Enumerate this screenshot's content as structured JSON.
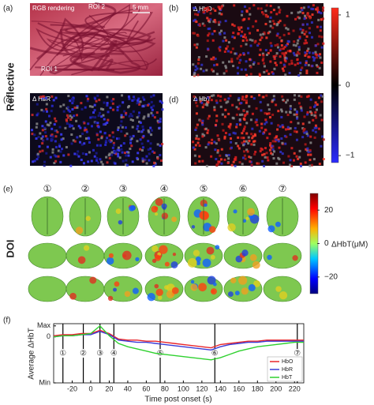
{
  "panels": {
    "side_top": "Reflective",
    "side_bottom": "DOI",
    "a": {
      "label": "(a)",
      "title": "RGB rendering",
      "roi1": "ROI 1",
      "roi2": "ROI 2",
      "scale": "5 mm"
    },
    "b": {
      "label": "(b)",
      "title": "Δ HbO"
    },
    "c": {
      "label": "(c)",
      "title": "Δ HbR"
    },
    "d": {
      "label": "(d)",
      "title": "Δ HbT"
    },
    "e": {
      "label": "(e)",
      "numbers": [
        "①",
        "②",
        "③",
        "④",
        "⑤",
        "⑥",
        "⑦"
      ]
    },
    "f": {
      "label": "(f)"
    }
  },
  "colorbar_reflective": {
    "lim": [
      -1.1,
      1.1
    ],
    "ticks": [
      1,
      0,
      {
        "value": -1,
        "label": "−1"
      }
    ]
  },
  "colorbar_doi": {
    "lim": [
      -30,
      30
    ],
    "label": "ΔHbT(μM)",
    "ticks": [
      20,
      0,
      {
        "value": -20,
        "label": "−20"
      }
    ]
  },
  "chart_data": {
    "type": "line",
    "y_label": "Average ΔHbT",
    "x_label": "Time post onset (s)",
    "xlim": [
      -40,
      230
    ],
    "ylim": [
      -4.2,
      1.2
    ],
    "xticks": [
      {
        "value": -20,
        "label": "-20"
      },
      0,
      20,
      40,
      60,
      80,
      100,
      120,
      140,
      160,
      180,
      200,
      220
    ],
    "yticks": [
      {
        "value": 1,
        "label": "Max"
      },
      0,
      {
        "value": -4.2,
        "label": "Min"
      }
    ],
    "x": [
      -40,
      -30,
      -20,
      -10,
      0,
      10,
      20,
      30,
      40,
      50,
      60,
      70,
      80,
      90,
      100,
      110,
      120,
      130,
      140,
      150,
      160,
      170,
      180,
      190,
      200,
      210,
      220,
      230
    ],
    "series": [
      {
        "name": "HbO",
        "color": "#e8262b",
        "values": [
          0.1,
          0.2,
          0.2,
          0.3,
          0.3,
          0.6,
          0.3,
          -0.2,
          -0.3,
          -0.3,
          -0.4,
          -0.4,
          -0.5,
          -0.6,
          -0.7,
          -0.8,
          -0.9,
          -1.0,
          -0.7,
          -0.6,
          -0.5,
          -0.4,
          -0.4,
          -0.3,
          -0.3,
          -0.3,
          -0.3,
          -0.3
        ]
      },
      {
        "name": "HbR",
        "color": "#3b3bd6",
        "values": [
          0,
          0.1,
          0.1,
          0.2,
          0.2,
          0.5,
          0.2,
          -0.3,
          -0.4,
          -0.5,
          -0.5,
          -0.6,
          -0.7,
          -0.8,
          -0.9,
          -1.0,
          -1.1,
          -1.2,
          -0.9,
          -0.7,
          -0.6,
          -0.5,
          -0.5,
          -0.4,
          -0.4,
          -0.4,
          -0.4,
          -0.4
        ]
      },
      {
        "name": "HbT",
        "color": "#2fd12f",
        "values": [
          0,
          0.1,
          0.1,
          0.2,
          0.3,
          1.0,
          0.1,
          -0.6,
          -0.9,
          -1.1,
          -1.3,
          -1.5,
          -1.6,
          -1.7,
          -1.8,
          -1.9,
          -2.0,
          -2.1,
          -1.9,
          -1.6,
          -1.3,
          -1.1,
          -0.9,
          -0.8,
          -0.7,
          -0.6,
          -0.5,
          -0.5
        ]
      }
    ],
    "markers": [
      {
        "x": -30,
        "label": "①"
      },
      {
        "x": -8,
        "label": "②"
      },
      {
        "x": 10,
        "label": "③"
      },
      {
        "x": 25,
        "label": "④"
      },
      {
        "x": 75,
        "label": "⑤"
      },
      {
        "x": 134,
        "label": "⑥"
      },
      {
        "x": 223,
        "label": "⑦"
      }
    ],
    "legend": "lower right"
  }
}
